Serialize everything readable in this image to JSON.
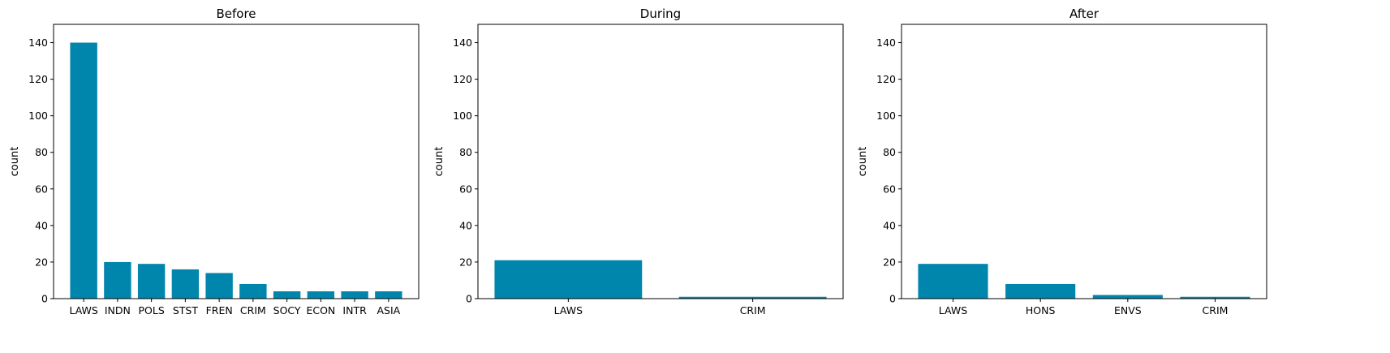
{
  "chart_data": [
    {
      "type": "bar",
      "title": "Before",
      "ylabel": "count",
      "xlabel": "",
      "ylim": [
        0,
        150
      ],
      "yticks": [
        0,
        20,
        40,
        60,
        80,
        100,
        120,
        140
      ],
      "categories": [
        "LAWS",
        "INDN",
        "POLS",
        "STST",
        "FREN",
        "CRIM",
        "SOCY",
        "ECON",
        "INTR",
        "ASIA"
      ],
      "values": [
        140,
        20,
        19,
        16,
        14,
        8,
        4,
        4,
        4,
        4
      ],
      "bar_color": "#0086ad",
      "grid": false
    },
    {
      "type": "bar",
      "title": "During",
      "ylabel": "count",
      "xlabel": "",
      "ylim": [
        0,
        150
      ],
      "yticks": [
        0,
        20,
        40,
        60,
        80,
        100,
        120,
        140
      ],
      "categories": [
        "LAWS",
        "CRIM"
      ],
      "values": [
        21,
        1
      ],
      "bar_color": "#0086ad",
      "grid": false
    },
    {
      "type": "bar",
      "title": "After",
      "ylabel": "count",
      "xlabel": "",
      "ylim": [
        0,
        150
      ],
      "yticks": [
        0,
        20,
        40,
        60,
        80,
        100,
        120,
        140
      ],
      "categories": [
        "LAWS",
        "HONS",
        "ENVS",
        "CRIM"
      ],
      "values": [
        19,
        8,
        2,
        1
      ],
      "bar_color": "#0086ad",
      "grid": false
    }
  ]
}
